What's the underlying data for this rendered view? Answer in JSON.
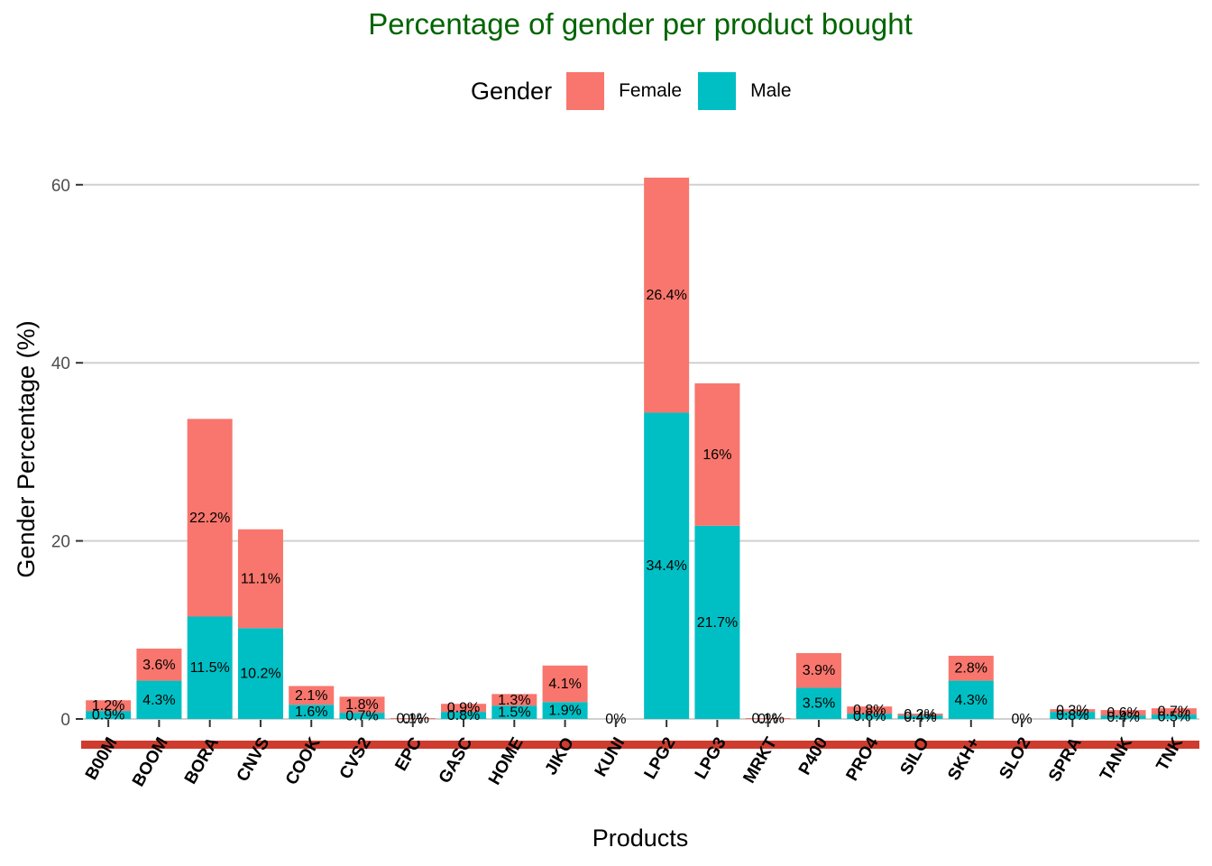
{
  "chart_data": {
    "type": "bar",
    "stacked": true,
    "title": "Percentage of gender per product bought",
    "xlabel": "Products",
    "ylabel": "Gender Percentage (%)",
    "ylim": [
      -3,
      63
    ],
    "yticks": [
      0,
      20,
      40,
      60
    ],
    "grid": true,
    "legend": {
      "title": "Gender",
      "position": "top"
    },
    "categories": [
      "B00M",
      "BOOM",
      "BORA",
      "CNVS",
      "COOK",
      "CVS2",
      "EPC",
      "GASC",
      "HOME",
      "JIKO",
      "KUNI",
      "LPG2",
      "LPG3",
      "MRKT",
      "P400",
      "PRO4",
      "SILO",
      "SKH+",
      "SLO2",
      "SPRA",
      "TANK",
      "TNK"
    ],
    "series": [
      {
        "name": "Male",
        "color": "#00BFC4",
        "values": [
          0.9,
          4.3,
          11.5,
          10.2,
          1.6,
          0.7,
          0,
          0.8,
          1.5,
          1.9,
          0,
          34.4,
          21.7,
          0,
          3.5,
          0.6,
          0.4,
          4.3,
          0,
          0.8,
          0.4,
          0.5
        ],
        "labels": [
          "0.9%",
          "4.3%",
          "11.5%",
          "10.2%",
          "1.6%",
          "0.7%",
          "0%",
          "0.8%",
          "1.5%",
          "1.9%",
          "0%",
          "34.4%",
          "21.7%",
          "0%",
          "3.5%",
          "0.6%",
          "0.4%",
          "4.3%",
          "0%",
          "0.8%",
          "0.4%",
          "0.5%"
        ]
      },
      {
        "name": "Female",
        "color": "#F8766D",
        "values": [
          1.2,
          3.6,
          22.2,
          11.1,
          2.1,
          1.8,
          0.1,
          0.9,
          1.3,
          4.1,
          null,
          26.4,
          16,
          0.1,
          3.9,
          0.8,
          0.2,
          2.8,
          null,
          0.3,
          0.6,
          0.7
        ],
        "labels": [
          "1.2%",
          "3.6%",
          "22.2%",
          "11.1%",
          "2.1%",
          "1.8%",
          "0.1%",
          "0.9%",
          "1.3%",
          "4.1%",
          "",
          "26.4%",
          "16%",
          "0.1%",
          "3.9%",
          "0.8%",
          "0.2%",
          "2.8%",
          "",
          "0.3%",
          "0.6%",
          "0.7%"
        ]
      }
    ],
    "gridline_color": "#d0d0d0",
    "baseline_band_color": "#cd3c2e"
  }
}
